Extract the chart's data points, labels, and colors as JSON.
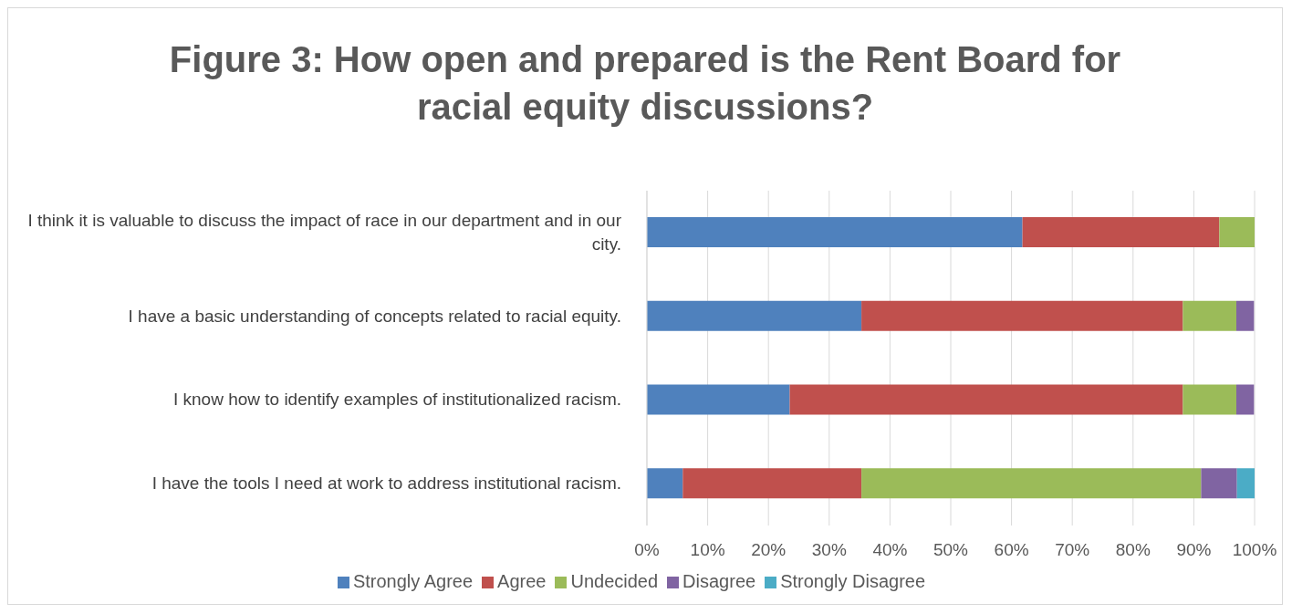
{
  "chart_data": {
    "type": "bar",
    "orientation": "horizontal",
    "stacked": true,
    "title": "Figure 3: How open and prepared is the Rent Board for racial equity discussions?",
    "categories": [
      "I think it is valuable to discuss the impact of race in our department and in our city.",
      "I have a basic understanding of concepts related to racial equity.",
      "I know how to identify examples of institutionalized racism.",
      "I have the tools I need at work to address institutional racism."
    ],
    "series": [
      {
        "name": "Strongly Agree",
        "color": "#4f81bd",
        "values": [
          61.8,
          35.3,
          23.5,
          5.9
        ]
      },
      {
        "name": "Agree",
        "color": "#c0504d",
        "values": [
          32.4,
          52.9,
          64.7,
          29.4
        ]
      },
      {
        "name": "Undecided",
        "color": "#9bbb59",
        "values": [
          5.9,
          8.8,
          8.8,
          55.9
        ]
      },
      {
        "name": "Disagree",
        "color": "#8064a2",
        "values": [
          0,
          2.9,
          2.9,
          5.9
        ]
      },
      {
        "name": "Strongly Disagree",
        "color": "#4bacc6",
        "values": [
          0,
          0,
          0,
          2.9
        ]
      }
    ],
    "xlim": [
      0,
      100
    ],
    "xticks": [
      {
        "value": 0,
        "label": "0%"
      },
      {
        "value": 10,
        "label": "10%"
      },
      {
        "value": 20,
        "label": "20%"
      },
      {
        "value": 30,
        "label": "30%"
      },
      {
        "value": 40,
        "label": "40%"
      },
      {
        "value": 50,
        "label": "50%"
      },
      {
        "value": 60,
        "label": "60%"
      },
      {
        "value": 70,
        "label": "70%"
      },
      {
        "value": 80,
        "label": "80%"
      },
      {
        "value": 90,
        "label": "90%"
      },
      {
        "value": 100,
        "label": "100%"
      }
    ],
    "grid": "x",
    "legend": "bottom"
  }
}
